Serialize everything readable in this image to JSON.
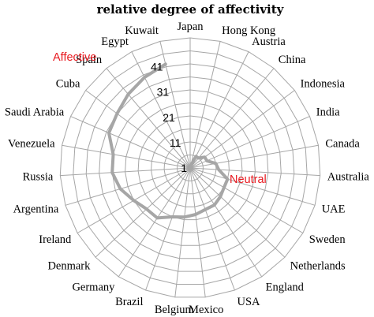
{
  "chart_data": {
    "type": "radar",
    "title": "relative degree of affectivity",
    "categories": [
      "Japan",
      "Hong Kong",
      "Austria",
      "China",
      "Indonesia",
      "India",
      "Canada",
      "Australia",
      "UAE",
      "Sweden",
      "Netherlands",
      "England",
      "USA",
      "Mexico",
      "Belgium",
      "Brazil",
      "Germany",
      "Denmark",
      "Ireland",
      "Argentina",
      "Russia",
      "Venezuela",
      "Saudi Arabia",
      "Cuba",
      "Spain",
      "Egypt",
      "Kuwait"
    ],
    "series": [
      {
        "values": [
          1,
          2,
          6,
          6,
          8,
          8,
          11,
          12,
          16,
          16,
          17,
          18,
          18,
          19,
          20,
          21,
          24,
          24,
          26,
          29,
          31,
          31,
          35,
          36,
          38,
          40,
          42
        ]
      }
    ],
    "rlim": [
      1,
      51
    ],
    "ticks": [
      1,
      11,
      21,
      31,
      41
    ],
    "annotations": [
      {
        "text": "Affective",
        "color": "#e8191f"
      },
      {
        "text": "Neutral",
        "color": "#e8191f"
      }
    ],
    "colors": {
      "series": "#a6a6a6",
      "grid": "#a6a6a6"
    },
    "grid": true,
    "legend": "none"
  }
}
